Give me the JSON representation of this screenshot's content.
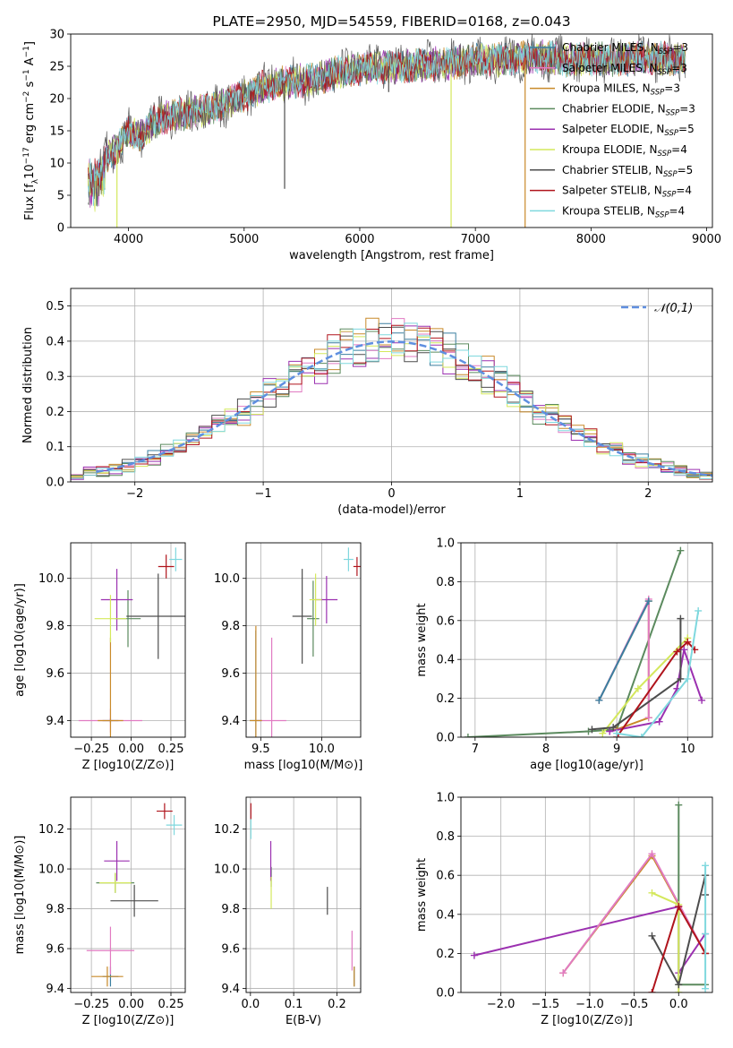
{
  "chart_data": [
    {
      "type": "line",
      "title": "PLATE=2950, MJD=54559, FIBERID=0168, z=0.043",
      "xlabel": "wavelength [Angstrom, rest frame]",
      "ylabel": "Flux [f_λ10^-17 erg cm^-2 s^-1 A^-1]",
      "xlim": [
        3500,
        9050
      ],
      "ylim": [
        0,
        30
      ],
      "xticks": [
        4000,
        5000,
        6000,
        7000,
        8000,
        9000
      ],
      "yticks": [
        0,
        5,
        10,
        15,
        20,
        25,
        30
      ],
      "legend_position": "top-right",
      "series": [
        {
          "name": "Chabrier MILES, N_SSP=3",
          "color": "#3a7fa0"
        },
        {
          "name": "Salpeter MILES, N_SSP=3",
          "color": "#e17bc2"
        },
        {
          "name": "Kroupa MILES, N_SSP=3",
          "color": "#c98a2a"
        },
        {
          "name": "Chabrier ELODIE, N_SSP=3",
          "color": "#5b8a5e"
        },
        {
          "name": "Salpeter ELODIE, N_SSP=5",
          "color": "#9b30b0"
        },
        {
          "name": "Kroupa ELODIE, N_SSP=4",
          "color": "#d4e85c"
        },
        {
          "name": "Chabrier STELIB, N_SSP=5",
          "color": "#4d4d4d"
        },
        {
          "name": "Salpeter STELIB, N_SSP=4",
          "color": "#b0141c"
        },
        {
          "name": "Kroupa STELIB, N_SSP=4",
          "color": "#7fd8de"
        }
      ],
      "spectrum_shape": {
        "x": [
          3650,
          3700,
          3800,
          3900,
          4000,
          4100,
          4200,
          4300,
          4400,
          4600,
          4800,
          5000,
          5200,
          5400,
          5600,
          5800,
          6000,
          6200,
          6400,
          6600,
          6800,
          7000,
          7200,
          7400,
          7600,
          7800,
          8000,
          8200,
          8400,
          8600,
          8800
        ],
        "y": [
          10,
          9,
          11,
          12,
          15,
          14,
          16,
          17,
          17.5,
          18,
          19,
          20.5,
          22,
          22.5,
          23,
          24,
          24.5,
          25,
          25,
          25.3,
          25.5,
          26,
          26,
          26.3,
          26.5,
          25.8,
          26.2,
          26,
          26.3,
          26.2,
          26
        ]
      },
      "spikes": [
        {
          "x": 3900,
          "ymin": 0,
          "color": "#d4e85c"
        },
        {
          "x": 6790,
          "ymin": 0,
          "color": "#d4e85c"
        },
        {
          "x": 7430,
          "ymin": 0,
          "color": "#c98a2a"
        },
        {
          "x": 5350,
          "ymin": 6,
          "color": "#4d4d4d"
        },
        {
          "x": 6250,
          "ymin": 21,
          "color": "#4d4d4d"
        }
      ]
    },
    {
      "type": "line",
      "xlabel": "(data-model)/error",
      "ylabel": "Normed distribution",
      "xlim": [
        -2.5,
        2.5
      ],
      "ylim": [
        0,
        0.55
      ],
      "xticks": [
        -2,
        -1,
        0,
        1,
        2
      ],
      "yticks": [
        0.0,
        0.1,
        0.2,
        0.3,
        0.4,
        0.5
      ],
      "legend": "𝒩(0,1)",
      "legend_color": "#5f8fe0",
      "histogram_bins": {
        "start": -2.5,
        "width": 0.1,
        "count": 50
      },
      "series_colors": [
        "#3a7fa0",
        "#e17bc2",
        "#c98a2a",
        "#5b8a5e",
        "#9b30b0",
        "#d4e85c",
        "#4d4d4d",
        "#b0141c",
        "#7fd8de"
      ]
    },
    {
      "type": "scatter",
      "xlabel": "Z [log10(Z/Z⊙)]",
      "ylabel": "age  [log10(age/yr)]",
      "xlim": [
        -0.38,
        0.34
      ],
      "ylim": [
        9.33,
        10.15
      ],
      "xticks": [
        -0.25,
        0.0,
        0.25
      ],
      "yticks": [
        9.4,
        9.6,
        9.8,
        10.0
      ],
      "points": [
        {
          "x": -0.13,
          "y": 9.4,
          "xerr": 0.05,
          "yerr": 0.0,
          "color": "#3a7fa0"
        },
        {
          "x": -0.13,
          "y": 9.4,
          "xerr": 0.2,
          "yerr": 0.05,
          "color": "#e17bc2"
        },
        {
          "x": -0.13,
          "y": 9.4,
          "xerr": 0.08,
          "yerr": 0.35,
          "color": "#c98a2a"
        },
        {
          "x": -0.02,
          "y": 9.83,
          "xerr": 0.08,
          "yerr": 0.12,
          "color": "#5b8a5e"
        },
        {
          "x": -0.09,
          "y": 9.91,
          "xerr": 0.1,
          "yerr": 0.13,
          "color": "#9b30b0"
        },
        {
          "x": -0.13,
          "y": 9.83,
          "xerr": 0.1,
          "yerr": 0.1,
          "color": "#d4e85c"
        },
        {
          "x": 0.17,
          "y": 9.84,
          "xerr": 0.2,
          "yerr": 0.18,
          "color": "#4d4d4d"
        },
        {
          "x": 0.22,
          "y": 10.05,
          "xerr": 0.05,
          "yerr": 0.05,
          "color": "#b0141c"
        },
        {
          "x": 0.28,
          "y": 10.08,
          "xerr": 0.04,
          "yerr": 0.05,
          "color": "#7fd8de"
        }
      ]
    },
    {
      "type": "scatter",
      "xlabel": "mass [log10(M/M⊙)]",
      "xlim": [
        9.38,
        10.32
      ],
      "ylim": [
        9.33,
        10.15
      ],
      "xticks": [
        9.5,
        10.0
      ],
      "yticks": [
        9.4,
        9.6,
        9.8,
        10.0
      ],
      "points": [
        {
          "x": 9.46,
          "y": 9.4,
          "xerr": 0.05,
          "yerr": 0.38,
          "color": "#3a7fa0"
        },
        {
          "x": 9.59,
          "y": 9.4,
          "xerr": 0.12,
          "yerr": 0.35,
          "color": "#e17bc2"
        },
        {
          "x": 9.46,
          "y": 9.4,
          "xerr": 0.05,
          "yerr": 0.4,
          "color": "#c98a2a"
        },
        {
          "x": 9.93,
          "y": 9.83,
          "xerr": 0.05,
          "yerr": 0.16,
          "color": "#5b8a5e"
        },
        {
          "x": 10.04,
          "y": 9.91,
          "xerr": 0.09,
          "yerr": 0.1,
          "color": "#9b30b0"
        },
        {
          "x": 9.95,
          "y": 9.91,
          "xerr": 0.05,
          "yerr": 0.11,
          "color": "#d4e85c"
        },
        {
          "x": 9.84,
          "y": 9.84,
          "xerr": 0.08,
          "yerr": 0.2,
          "color": "#4d4d4d"
        },
        {
          "x": 10.29,
          "y": 10.05,
          "xerr": 0.03,
          "yerr": 0.04,
          "color": "#b0141c"
        },
        {
          "x": 10.22,
          "y": 10.08,
          "xerr": 0.04,
          "yerr": 0.05,
          "color": "#7fd8de"
        }
      ]
    },
    {
      "type": "line",
      "xlabel": "age  [log10(age/yr)]",
      "ylabel": "mass weight",
      "xlim": [
        6.8,
        10.35
      ],
      "ylim": [
        0.0,
        1.0
      ],
      "xticks": [
        7,
        8,
        9,
        10
      ],
      "yticks": [
        0.0,
        0.2,
        0.4,
        0.6,
        0.8,
        1.0
      ],
      "series": [
        {
          "color": "#5b8a5e",
          "x": [
            6.9,
            8.6,
            9.0,
            9.9
          ],
          "y": [
            0.0,
            0.03,
            0.04,
            0.96
          ]
        },
        {
          "color": "#c98a2a",
          "x": [
            8.75,
            9.45,
            9.45,
            9.0
          ],
          "y": [
            0.19,
            0.7,
            0.1,
            0.04
          ]
        },
        {
          "color": "#e17bc2",
          "x": [
            8.75,
            9.45,
            9.45
          ],
          "y": [
            0.19,
            0.71,
            0.1
          ]
        },
        {
          "color": "#3a7fa0",
          "x": [
            8.75,
            9.45
          ],
          "y": [
            0.19,
            0.7
          ]
        },
        {
          "color": "#9b30b0",
          "x": [
            8.9,
            9.6,
            9.85,
            9.95,
            10.2
          ],
          "y": [
            0.03,
            0.08,
            0.25,
            0.45,
            0.19
          ]
        },
        {
          "color": "#d4e85c",
          "x": [
            8.8,
            9.3,
            10.0
          ],
          "y": [
            0.02,
            0.25,
            0.51
          ]
        },
        {
          "color": "#4d4d4d",
          "x": [
            8.65,
            8.95,
            9.9,
            9.9
          ],
          "y": [
            0.04,
            0.05,
            0.3,
            0.61
          ]
        },
        {
          "color": "#b0141c",
          "x": [
            9.0,
            9.85,
            10.0,
            10.1
          ],
          "y": [
            0.0,
            0.44,
            0.49,
            0.45
          ]
        },
        {
          "color": "#7fd8de",
          "x": [
            9.0,
            9.35,
            10.0,
            10.15
          ],
          "y": [
            0.02,
            0.0,
            0.3,
            0.65
          ]
        }
      ]
    },
    {
      "type": "scatter",
      "xlabel": "Z [log10(Z/Z⊙)]",
      "ylabel": "mass [log10(M/M⊙)]",
      "xlim": [
        -0.38,
        0.34
      ],
      "ylim": [
        9.38,
        10.36
      ],
      "xticks": [
        -0.25,
        0.0,
        0.25
      ],
      "yticks": [
        9.4,
        9.6,
        9.8,
        10.0,
        10.2
      ],
      "points": [
        {
          "x": -0.13,
          "y": 9.46,
          "xerr": 0.05,
          "yerr": 0.05,
          "color": "#3a7fa0"
        },
        {
          "x": -0.13,
          "y": 9.59,
          "xerr": 0.15,
          "yerr": 0.12,
          "color": "#e17bc2"
        },
        {
          "x": -0.15,
          "y": 9.46,
          "xerr": 0.1,
          "yerr": 0.05,
          "color": "#c98a2a"
        },
        {
          "x": -0.1,
          "y": 9.93,
          "xerr": 0.12,
          "yerr": 0.05,
          "color": "#5b8a5e"
        },
        {
          "x": -0.09,
          "y": 10.04,
          "xerr": 0.08,
          "yerr": 0.1,
          "color": "#9b30b0"
        },
        {
          "x": -0.1,
          "y": 9.93,
          "xerr": 0.1,
          "yerr": 0.05,
          "color": "#d4e85c"
        },
        {
          "x": 0.02,
          "y": 9.84,
          "xerr": 0.15,
          "yerr": 0.08,
          "color": "#4d4d4d"
        },
        {
          "x": 0.21,
          "y": 10.29,
          "xerr": 0.05,
          "yerr": 0.04,
          "color": "#b0141c"
        },
        {
          "x": 0.27,
          "y": 10.22,
          "xerr": 0.05,
          "yerr": 0.05,
          "color": "#7fd8de"
        }
      ]
    },
    {
      "type": "scatter",
      "xlabel": "E(B-V)",
      "xlim": [
        -0.01,
        0.255
      ],
      "ylim": [
        9.38,
        10.36
      ],
      "xticks": [
        0.0,
        0.1,
        0.2
      ],
      "yticks": [
        9.4,
        9.6,
        9.8,
        10.0,
        10.2
      ],
      "points": [
        {
          "x": 0.24,
          "y": 9.46,
          "yerr": 0.05,
          "color": "#3a7fa0"
        },
        {
          "x": 0.235,
          "y": 9.59,
          "yerr": 0.1,
          "color": "#e17bc2"
        },
        {
          "x": 0.24,
          "y": 9.46,
          "yerr": 0.05,
          "color": "#c98a2a"
        },
        {
          "x": 0.048,
          "y": 9.96,
          "yerr": 0.05,
          "color": "#5b8a5e"
        },
        {
          "x": 0.047,
          "y": 10.04,
          "yerr": 0.1,
          "color": "#9b30b0"
        },
        {
          "x": 0.048,
          "y": 9.88,
          "yerr": 0.08,
          "color": "#d4e85c"
        },
        {
          "x": 0.178,
          "y": 9.84,
          "yerr": 0.07,
          "color": "#4d4d4d"
        },
        {
          "x": 0.001,
          "y": 10.29,
          "yerr": 0.04,
          "color": "#b0141c"
        },
        {
          "x": 0.001,
          "y": 10.2,
          "yerr": 0.05,
          "color": "#7fd8de"
        }
      ]
    },
    {
      "type": "line",
      "xlabel": "Z [log10(Z/Z⊙)]",
      "ylabel": "mass weight",
      "xlim": [
        -2.45,
        0.38
      ],
      "ylim": [
        0.0,
        1.0
      ],
      "xticks": [
        -2.0,
        -1.5,
        -1.0,
        -0.5,
        0.0
      ],
      "yticks": [
        0.0,
        0.2,
        0.4,
        0.6,
        0.8,
        1.0
      ],
      "series": [
        {
          "color": "#9b30b0",
          "x": [
            -2.3,
            0.0,
            0.0,
            0.3
          ],
          "y": [
            0.19,
            0.44,
            0.1,
            0.3
          ]
        },
        {
          "color": "#c98a2a",
          "x": [
            -1.3,
            -0.3,
            0.3
          ],
          "y": [
            0.1,
            0.7,
            0.2
          ]
        },
        {
          "color": "#e17bc2",
          "x": [
            -1.3,
            -0.3,
            0.3
          ],
          "y": [
            0.1,
            0.71,
            0.2
          ]
        },
        {
          "color": "#5b8a5e",
          "x": [
            0.0,
            0.0,
            0.3
          ],
          "y": [
            0.96,
            0.04,
            0.04
          ]
        },
        {
          "color": "#d4e85c",
          "x": [
            -0.3,
            0.0,
            0.0
          ],
          "y": [
            0.51,
            0.45,
            0.0
          ]
        },
        {
          "color": "#4d4d4d",
          "x": [
            -0.3,
            0.0,
            0.3,
            0.3
          ],
          "y": [
            0.29,
            0.04,
            0.6,
            0.5
          ]
        },
        {
          "color": "#b0141c",
          "x": [
            -0.3,
            0.0,
            0.3
          ],
          "y": [
            0.0,
            0.44,
            0.2
          ]
        },
        {
          "color": "#7fd8de",
          "x": [
            0.3,
            0.3,
            0.3
          ],
          "y": [
            0.65,
            0.3,
            0.02
          ]
        }
      ]
    }
  ]
}
